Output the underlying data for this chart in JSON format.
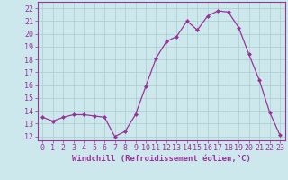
{
  "x": [
    0,
    1,
    2,
    3,
    4,
    5,
    6,
    7,
    8,
    9,
    10,
    11,
    12,
    13,
    14,
    15,
    16,
    17,
    18,
    19,
    20,
    21,
    22,
    23
  ],
  "y": [
    13.5,
    13.2,
    13.5,
    13.7,
    13.7,
    13.6,
    13.5,
    12.0,
    12.4,
    13.7,
    15.9,
    18.1,
    19.4,
    19.8,
    21.0,
    20.3,
    21.4,
    21.8,
    21.7,
    20.5,
    18.4,
    16.4,
    13.9,
    12.1
  ],
  "line_color": "#993399",
  "marker": "D",
  "marker_size": 2.0,
  "xlabel": "Windchill (Refroidissement éolien,°C)",
  "xlabel_fontsize": 6.5,
  "ylabel_ticks": [
    12,
    13,
    14,
    15,
    16,
    17,
    18,
    19,
    20,
    21,
    22
  ],
  "ylim": [
    11.7,
    22.5
  ],
  "xlim": [
    -0.5,
    23.5
  ],
  "bg_color": "#cce8ec",
  "grid_color": "#aacccc",
  "tick_fontsize": 6.0
}
